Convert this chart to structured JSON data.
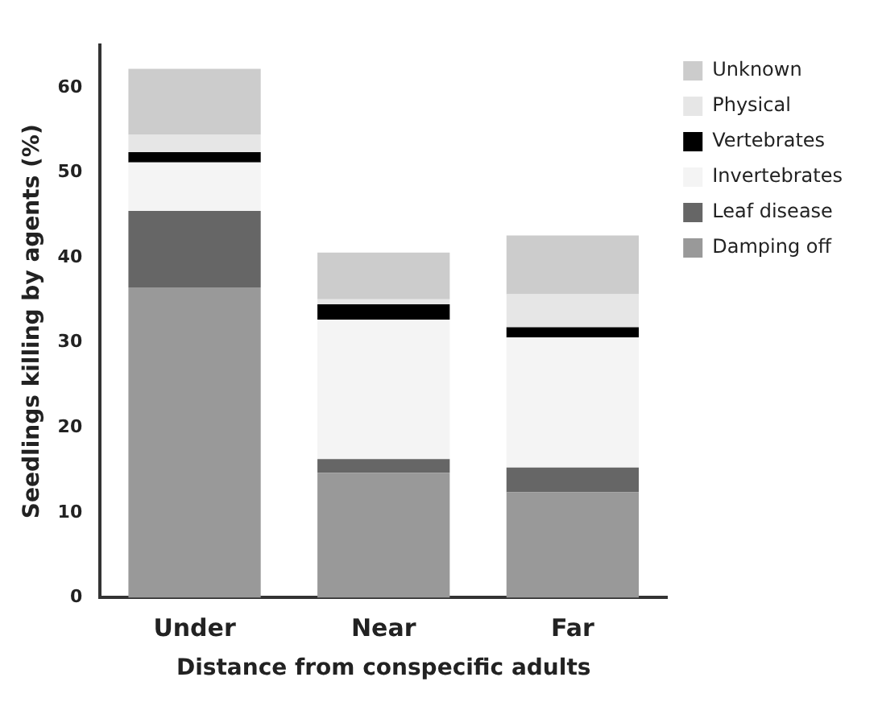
{
  "chart_data": {
    "type": "bar",
    "stacked": true,
    "xlabel": "Distance from conspecific adults",
    "ylabel": "Seedlings killing by agents (%)",
    "categories": [
      "Under",
      "Near",
      "Far"
    ],
    "ylim": [
      0,
      65
    ],
    "yticks": [
      0,
      10,
      20,
      30,
      40,
      50,
      60
    ],
    "grid": false,
    "legend": "top right",
    "series": [
      {
        "name": "Damping off",
        "color": "#999999",
        "values": [
          36.5,
          14.7,
          12.4
        ]
      },
      {
        "name": "Leaf disease",
        "color": "#666666",
        "values": [
          9,
          1.6,
          2.9
        ]
      },
      {
        "name": "Invertebrates",
        "color": "#f4f4f4",
        "values": [
          5.7,
          16.4,
          15.3
        ]
      },
      {
        "name": "Vertebrates",
        "color": "#000000",
        "values": [
          1.2,
          1.8,
          1.2
        ]
      },
      {
        "name": "Physical",
        "color": "#e6e6e6",
        "values": [
          2.1,
          0.6,
          3.9
        ]
      },
      {
        "name": "Unknown",
        "color": "#cccccc",
        "values": [
          7.7,
          5.5,
          6.9
        ]
      }
    ]
  }
}
